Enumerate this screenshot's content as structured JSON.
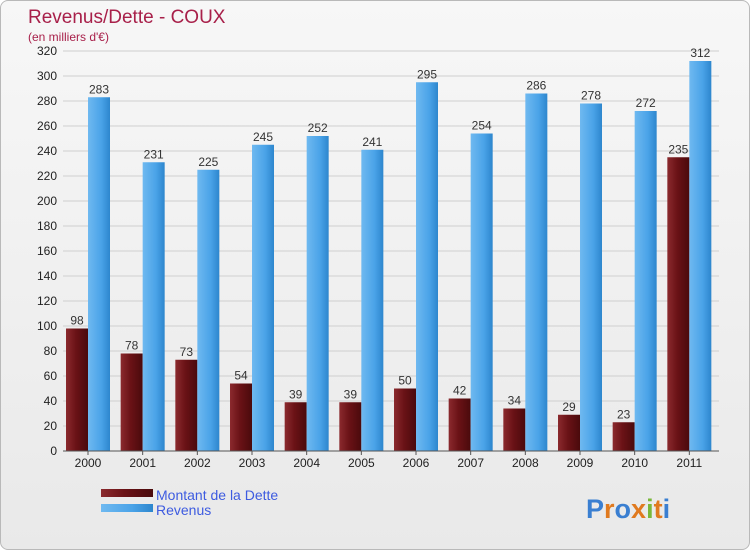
{
  "header": {
    "title": "Revenus/Dette - COUX",
    "subtitle": "(en milliers d'€)"
  },
  "chart_data": {
    "type": "bar",
    "categories": [
      "2000",
      "2001",
      "2002",
      "2003",
      "2004",
      "2005",
      "2006",
      "2007",
      "2008",
      "2009",
      "2010",
      "2011"
    ],
    "series": [
      {
        "name": "Montant de la Dette",
        "values": [
          98,
          78,
          73,
          54,
          39,
          39,
          50,
          42,
          34,
          29,
          23,
          235
        ],
        "color": "#7a1a1f"
      },
      {
        "name": "Revenus",
        "values": [
          283,
          231,
          225,
          245,
          252,
          241,
          295,
          254,
          286,
          278,
          272,
          312
        ],
        "color": "#4aa3e8"
      }
    ],
    "ylim": [
      0,
      320
    ],
    "yticks": [
      0,
      20,
      40,
      60,
      80,
      100,
      120,
      140,
      160,
      180,
      200,
      220,
      240,
      260,
      280,
      300,
      320
    ],
    "grid": true,
    "legend": "bottom-left"
  },
  "brand": {
    "letters": [
      "P",
      "r",
      "o",
      "x",
      "i",
      "t",
      "i"
    ],
    "colors": [
      "#3a7fd1",
      "#e07a1f",
      "#3a7fd1",
      "#e07a1f",
      "#7ab83a",
      "#e07a1f",
      "#3a7fd1"
    ]
  }
}
